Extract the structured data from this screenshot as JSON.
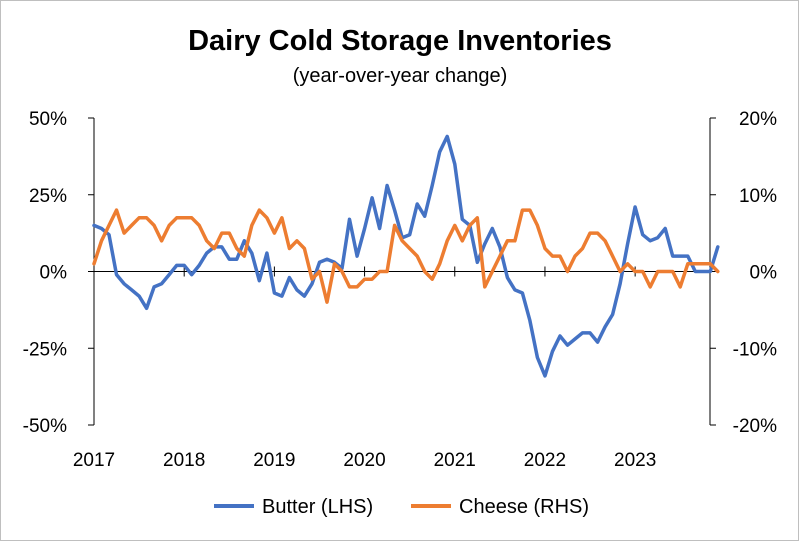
{
  "chart_data": {
    "type": "line",
    "title": "Dairy Cold Storage Inventories",
    "subtitle": "(year-over-year change)",
    "x_start": 2017.0,
    "x_step": 0.0833333,
    "xlim": [
      2017,
      2023.83
    ],
    "x_ticks": [
      {
        "value": 2017,
        "label": "2017"
      },
      {
        "value": 2018,
        "label": "2018"
      },
      {
        "value": 2019,
        "label": "2019"
      },
      {
        "value": 2020,
        "label": "2020"
      },
      {
        "value": 2021,
        "label": "2021"
      },
      {
        "value": 2022,
        "label": "2022"
      },
      {
        "value": 2023,
        "label": "2023"
      }
    ],
    "y_left": {
      "lim": [
        -50,
        50
      ],
      "ticks": [
        {
          "value": 50,
          "label": "50%"
        },
        {
          "value": 25,
          "label": "25%"
        },
        {
          "value": 0,
          "label": "0%"
        },
        {
          "value": -25,
          "label": "-25%"
        },
        {
          "value": -50,
          "label": "-50%"
        }
      ]
    },
    "y_right": {
      "lim": [
        -20,
        20
      ],
      "ticks": [
        {
          "value": 20,
          "label": "20%"
        },
        {
          "value": 10,
          "label": "10%"
        },
        {
          "value": 0,
          "label": "0%"
        },
        {
          "value": -10,
          "label": "-10%"
        },
        {
          "value": -20,
          "label": "-20%"
        }
      ]
    },
    "series": [
      {
        "name": "Butter (LHS)",
        "axis": "left",
        "color": "#4472C4",
        "values": [
          15,
          14,
          12,
          -1,
          -4,
          -6,
          -8,
          -12,
          -5,
          -4,
          -1,
          2,
          2,
          -1,
          2,
          6,
          8,
          8,
          4,
          4,
          10,
          6,
          -3,
          6,
          -7,
          -8,
          -2,
          -6,
          -8,
          -4,
          3,
          4,
          3,
          1,
          17,
          5,
          14,
          24,
          14,
          28,
          20,
          11,
          12,
          22,
          18,
          28,
          39,
          44,
          35,
          17,
          15,
          3,
          9,
          14,
          8,
          -2,
          -6,
          -7,
          -16,
          -28,
          -34,
          -26,
          -21,
          -24,
          -22,
          -20,
          -20,
          -23,
          -18,
          -14,
          -4,
          9,
          21,
          12,
          10,
          11,
          14,
          5,
          5,
          5,
          0,
          0,
          0,
          8
        ]
      },
      {
        "name": "Cheese (RHS)",
        "axis": "right",
        "color": "#ED7D31",
        "values": [
          1,
          4,
          6,
          8,
          5,
          6,
          7,
          7,
          6,
          4,
          6,
          7,
          7,
          7,
          6,
          4,
          3,
          5,
          5,
          3,
          2,
          6,
          8,
          7,
          5,
          7,
          3,
          4,
          3,
          -1,
          0,
          -4,
          1,
          0,
          -2,
          -2,
          -1,
          -1,
          0,
          0,
          6,
          4,
          3,
          2,
          0,
          -1,
          1,
          4,
          6,
          4,
          6,
          7,
          -2,
          0,
          2,
          4,
          4,
          8,
          8,
          6,
          3,
          2,
          2,
          0,
          2,
          3,
          5,
          5,
          4,
          2,
          0,
          1,
          0,
          0,
          -2,
          0,
          0,
          0,
          -2,
          1,
          1,
          1,
          1,
          0
        ]
      }
    ]
  }
}
